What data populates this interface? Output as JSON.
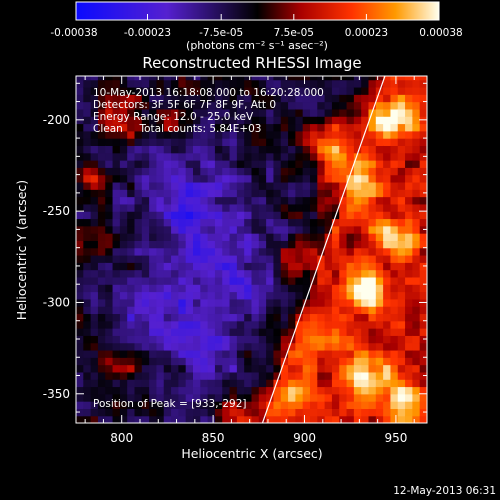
{
  "chart_data": {
    "type": "heatmap",
    "title": "Reconstructed RHESSI Image",
    "xlabel": "Heliocentric X (arcsec)",
    "ylabel": "Heliocentric Y (arcsec)",
    "xlim": [
      775,
      967
    ],
    "ylim": [
      -366,
      -176
    ],
    "x_ticks": [
      800,
      850,
      900,
      950
    ],
    "y_ticks": [
      -200,
      -250,
      -300,
      -350
    ],
    "colorbar": {
      "ticks": [
        "-0.00038",
        "-0.00023",
        "-7.5e-05",
        "7.5e-05",
        "0.00023",
        "0.00038"
      ],
      "range": [
        -0.00038,
        0.00038
      ],
      "units_label": "(photons cm⁻² s⁻¹ asec⁻²)"
    },
    "annotations": [
      "10-May-2013 16:18:08.000 to 16:20:28.000",
      "Detectors: 3F 5F 6F 7F 8F 9F, Att 0",
      "Energy Range: 12.0 - 25.0 keV",
      "Clean     Total counts: 5.84E+03"
    ],
    "peak_label": "Position of Peak = [933,-292]",
    "peak": [
      933,
      -292
    ],
    "limb_line": [
      [
        877,
        -366
      ],
      [
        944,
        -176
      ]
    ]
  },
  "footer_date": "12-May-2013 06:31"
}
